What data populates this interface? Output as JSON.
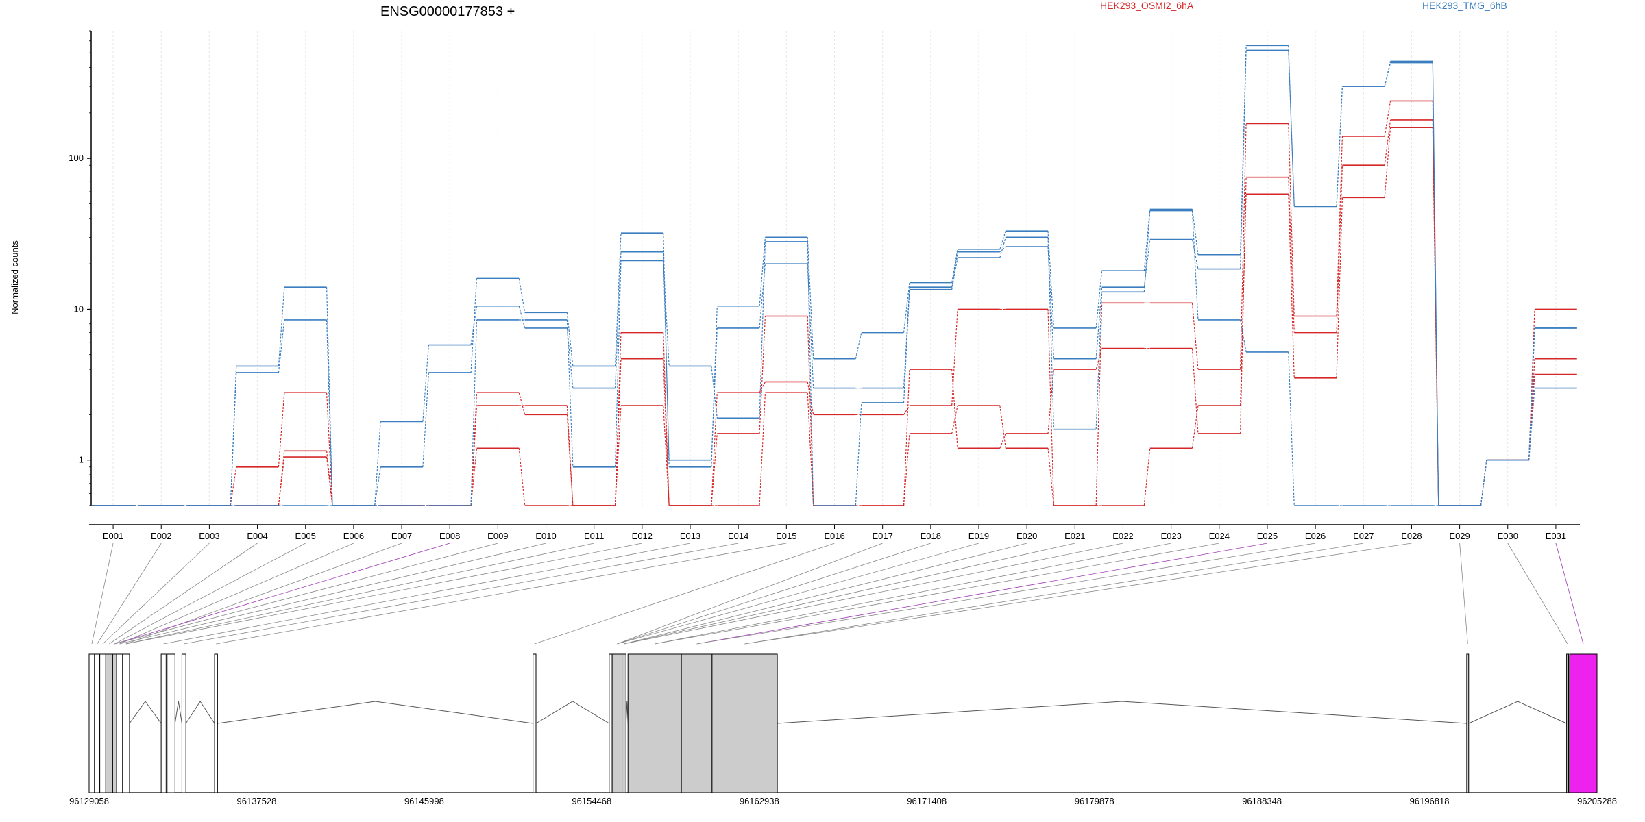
{
  "chart_data": {
    "type": "line",
    "title": "ENSG00000177853 +",
    "ylabel": "Normalized counts",
    "y_scale": "log",
    "ylim": [
      0.5,
      700
    ],
    "y_ticks": [
      {
        "value": 1,
        "label": "1"
      },
      {
        "value": 10,
        "label": "10"
      },
      {
        "value": 100,
        "label": "100"
      }
    ],
    "categories": [
      "E001",
      "E002",
      "E003",
      "E004",
      "E005",
      "E006",
      "E007",
      "E008",
      "E009",
      "E010",
      "E011",
      "E012",
      "E013",
      "E014",
      "E015",
      "E016",
      "E017",
      "E018",
      "E019",
      "E020",
      "E021",
      "E022",
      "E023",
      "E024",
      "E025",
      "E026",
      "E027",
      "E028",
      "E029",
      "E030",
      "E031"
    ],
    "grid": "vertical dashed",
    "legend": [
      {
        "name": "HEK293_OSMI2_6hA",
        "color": "#d62728"
      },
      {
        "name": "HEK293_TMG_6hB",
        "color": "#3a7ec0"
      }
    ],
    "series": [
      {
        "group": "HEK293_OSMI2_6hA",
        "color": "#d62728",
        "values": [
          0.5,
          0.5,
          0.5,
          0.9,
          2.8,
          0.5,
          0.5,
          0.5,
          2.3,
          2.3,
          0.5,
          7.0,
          0.5,
          2.8,
          3.3,
          2.0,
          2.0,
          2.3,
          10.0,
          10.0,
          0.5,
          11.0,
          11.0,
          4.0,
          170,
          9.0,
          140,
          240,
          0.5,
          1.0,
          10.0
        ]
      },
      {
        "group": "HEK293_OSMI2_6hA",
        "color": "#d62728",
        "values": [
          0.5,
          0.5,
          0.5,
          0.5,
          1.15,
          0.5,
          0.5,
          0.5,
          2.8,
          2.0,
          0.5,
          4.7,
          0.5,
          1.5,
          9.0,
          0.5,
          0.5,
          4.0,
          1.2,
          1.5,
          4.0,
          5.5,
          5.5,
          1.5,
          75,
          7.0,
          90,
          180,
          0.5,
          1.0,
          4.7
        ]
      },
      {
        "group": "HEK293_OSMI2_6hA",
        "color": "#d62728",
        "values": [
          0.5,
          0.5,
          0.5,
          0.5,
          1.05,
          0.5,
          0.5,
          0.5,
          1.2,
          0.5,
          0.5,
          2.3,
          0.5,
          0.5,
          2.8,
          0.5,
          0.5,
          1.5,
          2.3,
          1.2,
          0.5,
          0.5,
          1.2,
          2.3,
          58,
          3.5,
          55,
          160,
          0.5,
          1.0,
          3.7
        ]
      },
      {
        "group": "HEK293_TMG_6hB",
        "color": "#3a7ec0",
        "values": [
          0.5,
          0.5,
          0.5,
          4.2,
          14.0,
          0.5,
          0.9,
          3.8,
          16.0,
          9.5,
          4.2,
          32.0,
          0.9,
          10.5,
          30.0,
          4.7,
          7.0,
          15.0,
          25.0,
          33.0,
          7.5,
          18.0,
          46.0,
          23.0,
          560,
          48,
          300,
          430,
          0.5,
          1.0,
          7.5
        ]
      },
      {
        "group": "HEK293_TMG_6hB",
        "color": "#3a7ec0",
        "values": [
          0.5,
          0.5,
          0.5,
          3.8,
          8.5,
          0.5,
          1.8,
          5.8,
          10.5,
          7.5,
          3.0,
          24.0,
          1.0,
          7.5,
          20.0,
          3.0,
          3.0,
          14.0,
          24.0,
          26.0,
          4.7,
          14.0,
          29.0,
          18.5,
          520,
          48,
          300,
          440,
          0.5,
          1.0,
          7.5
        ]
      },
      {
        "group": "HEK293_TMG_6hB",
        "color": "#3a7ec0",
        "values": [
          0.5,
          0.5,
          0.5,
          0.5,
          0.5,
          0.5,
          0.5,
          0.5,
          8.5,
          8.5,
          0.9,
          21.0,
          4.2,
          1.9,
          28.0,
          0.5,
          2.4,
          13.5,
          22.0,
          30.0,
          1.6,
          13.0,
          45.0,
          8.5,
          5.2,
          0.5,
          0.5,
          0.5,
          0.5,
          1.0,
          3.0
        ]
      }
    ],
    "gene_model": {
      "start": 96129058,
      "end": 96205288,
      "coord_ticks": [
        96129058,
        96137528,
        96145998,
        96154468,
        96162938,
        96171408,
        96179878,
        96188348,
        96196818,
        96205288
      ],
      "exons": [
        {
          "start": 96129058,
          "end": 96129330,
          "fill": "#ffffff"
        },
        {
          "start": 96129330,
          "end": 96129600,
          "fill": "#ffffff"
        },
        {
          "start": 96129600,
          "end": 96129900,
          "fill": "#ffffff"
        },
        {
          "start": 96129900,
          "end": 96130250,
          "fill": "#cccccc"
        },
        {
          "start": 96130250,
          "end": 96130450,
          "fill": "#cccccc"
        },
        {
          "start": 96130450,
          "end": 96130750,
          "fill": "#ffffff"
        },
        {
          "start": 96130750,
          "end": 96131100,
          "fill": "#ffffff"
        },
        {
          "start": 96132700,
          "end": 96132950,
          "fill": "#ffffff"
        },
        {
          "start": 96133000,
          "end": 96133400,
          "fill": "#ffffff"
        },
        {
          "start": 96133750,
          "end": 96133950,
          "fill": "#ffffff"
        },
        {
          "start": 96135400,
          "end": 96135550,
          "fill": "#ffffff"
        },
        {
          "start": 96151500,
          "end": 96151650,
          "fill": "#ffffff"
        },
        {
          "start": 96155350,
          "end": 96155500,
          "fill": "#ffffff"
        },
        {
          "start": 96155500,
          "end": 96156000,
          "fill": "#cccccc"
        },
        {
          "start": 96156000,
          "end": 96156200,
          "fill": "#cccccc"
        },
        {
          "start": 96156300,
          "end": 96159000,
          "fill": "#cccccc"
        },
        {
          "start": 96159000,
          "end": 96160550,
          "fill": "#cccccc"
        },
        {
          "start": 96160550,
          "end": 96163850,
          "fill": "#cccccc"
        },
        {
          "start": 96198700,
          "end": 96198800,
          "fill": "#cccccc"
        },
        {
          "start": 96203750,
          "end": 96203850,
          "fill": "#cccccc"
        },
        {
          "start": 96203900,
          "end": 96205288,
          "fill": "#ee22ee"
        }
      ]
    }
  }
}
